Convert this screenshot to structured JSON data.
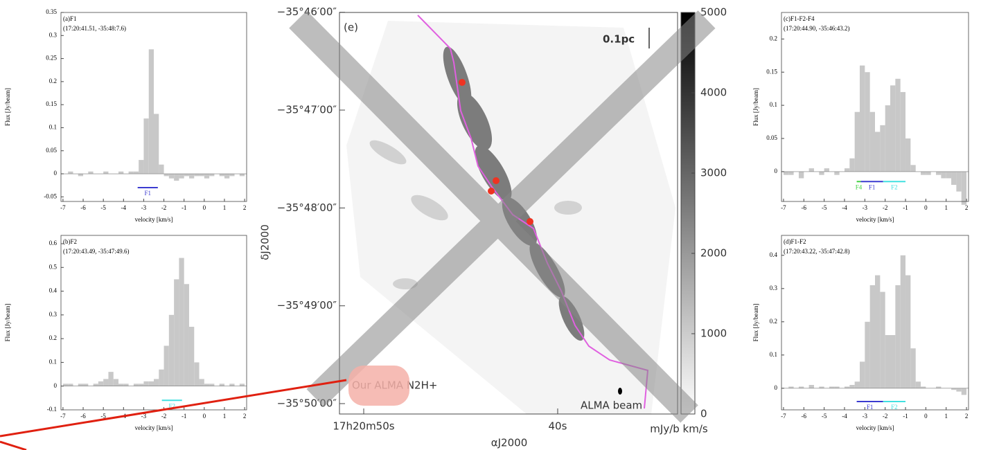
{
  "chart_data": [
    {
      "type": "histogram",
      "title": "(a)F1",
      "subtitle": "(17:20:41.51, -35:48:7.6)",
      "xlabel": "velocity [km/s]",
      "ylabel": "Flux [Jy/beam]",
      "color": "#c8c8c8",
      "bins": [
        -7,
        -6.75,
        -6.5,
        -6.25,
        -6,
        -5.75,
        -5.5,
        -5.25,
        -5,
        -4.75,
        -4.5,
        -4.25,
        -4,
        -3.75,
        -3.5,
        -3.25,
        -3,
        -2.75,
        -2.5,
        -2.25,
        -2,
        -1.75,
        -1.5,
        -1.25,
        -1,
        -0.75,
        -0.5,
        -0.25,
        0,
        0.25,
        0.5,
        0.75,
        1,
        1.25,
        1.5,
        1.75,
        2
      ],
      "values": [
        0,
        0.005,
        0,
        -0.005,
        0,
        0.005,
        0,
        0,
        0.005,
        0,
        0,
        0.005,
        0,
        0.005,
        0.005,
        0.03,
        0.12,
        0.27,
        0.13,
        0.02,
        -0.005,
        -0.01,
        -0.015,
        -0.01,
        -0.005,
        -0.01,
        -0.005,
        -0.005,
        -0.01,
        -0.005,
        0,
        -0.005,
        -0.01,
        -0.005,
        0,
        -0.005
      ],
      "xlim": [
        -7.1,
        2.1
      ],
      "xticks": [
        -7,
        -6,
        -5,
        -4,
        -3,
        -2,
        -1,
        0,
        1,
        2
      ],
      "ylim": [
        -0.06,
        0.35
      ],
      "yticks": [
        -0.05,
        0,
        0.05,
        0.1,
        0.15,
        0.2,
        0.25,
        0.3,
        0.35
      ],
      "markers": [
        {
          "label": "F1",
          "from": -3.3,
          "to": -2.3,
          "y": -0.03,
          "color": "#3a3ad0"
        }
      ]
    },
    {
      "type": "histogram",
      "title": "(b)F2",
      "subtitle": "(17:20:43.49, -35:47:49.6)",
      "xlabel": "velocity [km/s]",
      "ylabel": "Flux [Jy/beam]",
      "color": "#c8c8c8",
      "bins": [
        -7,
        -6.75,
        -6.5,
        -6.25,
        -6,
        -5.75,
        -5.5,
        -5.25,
        -5,
        -4.75,
        -4.5,
        -4.25,
        -4,
        -3.75,
        -3.5,
        -3.25,
        -3,
        -2.75,
        -2.5,
        -2.25,
        -2,
        -1.75,
        -1.5,
        -1.25,
        -1,
        -0.75,
        -0.5,
        -0.25,
        0,
        0.25,
        0.5,
        0.75,
        1,
        1.25,
        1.5,
        1.75,
        2
      ],
      "values": [
        0.01,
        0.01,
        0,
        0.01,
        0.01,
        0,
        0.01,
        0.02,
        0.03,
        0.06,
        0.03,
        0.01,
        0.01,
        0,
        0.01,
        0.01,
        0.02,
        0.02,
        0.03,
        0.07,
        0.17,
        0.3,
        0.45,
        0.54,
        0.43,
        0.25,
        0.1,
        0.03,
        0.01,
        0.01,
        0,
        0.01,
        0,
        0.01,
        0,
        0.01
      ],
      "xlim": [
        -7.1,
        2.1
      ],
      "xticks": [
        -7,
        -6,
        -5,
        -4,
        -3,
        -2,
        -1,
        0,
        1,
        2
      ],
      "ylim": [
        -0.1,
        0.635
      ],
      "yticks": [
        -0.1,
        0,
        0.1,
        0.2,
        0.3,
        0.4,
        0.5,
        0.6
      ],
      "markers": [
        {
          "label": "F2",
          "from": -2.1,
          "to": -1.1,
          "y": -0.06,
          "color": "#40e0e0"
        }
      ]
    },
    {
      "type": "histogram",
      "title": "(c)F1-F2-F4",
      "subtitle": "(17:20:44.90, -35:46:43.2)",
      "xlabel": "velocity [km/s]",
      "ylabel": "Flux [Jy/beam]",
      "color": "#c8c8c8",
      "bins": [
        -7,
        -6.75,
        -6.5,
        -6.25,
        -6,
        -5.75,
        -5.5,
        -5.25,
        -5,
        -4.75,
        -4.5,
        -4.25,
        -4,
        -3.75,
        -3.5,
        -3.25,
        -3,
        -2.75,
        -2.5,
        -2.25,
        -2,
        -1.75,
        -1.5,
        -1.25,
        -1,
        -0.75,
        -0.5,
        -0.25,
        0,
        0.25,
        0.5,
        0.75,
        1,
        1.25,
        1.5,
        1.75,
        2
      ],
      "values": [
        -0.005,
        -0.005,
        0,
        -0.01,
        0,
        0.005,
        0,
        -0.005,
        0.005,
        0,
        -0.005,
        0,
        0.005,
        0.02,
        0.09,
        0.16,
        0.15,
        0.09,
        0.06,
        0.07,
        0.1,
        0.13,
        0.14,
        0.12,
        0.05,
        0.01,
        0,
        -0.005,
        -0.005,
        0,
        -0.005,
        -0.01,
        -0.01,
        -0.02,
        -0.03,
        -0.05
      ],
      "xlim": [
        -7.1,
        2.1
      ],
      "xticks": [
        -7,
        -6,
        -5,
        -4,
        -3,
        -2,
        -1,
        0,
        1,
        2
      ],
      "ylim": [
        -0.045,
        0.24
      ],
      "yticks": [
        0,
        0.05,
        0.1,
        0.15,
        0.2
      ],
      "markers": [
        {
          "label": "F4",
          "from": -3.4,
          "to": -3.2,
          "y": -0.015,
          "color": "#40d040"
        },
        {
          "label": "F1",
          "from": -3.2,
          "to": -2.1,
          "y": -0.015,
          "color": "#3a3ad0"
        },
        {
          "label": "F2",
          "from": -2.1,
          "to": -1.0,
          "y": -0.015,
          "color": "#40e0e0"
        }
      ]
    },
    {
      "type": "histogram",
      "title": "(d)F1-F2",
      "subtitle": "(17:20:43.22, -35:47:42.8)",
      "xlabel": "velocity [km/s]",
      "ylabel": "Flux [Jy/beam]",
      "color": "#c8c8c8",
      "bins": [
        -7,
        -6.75,
        -6.5,
        -6.25,
        -6,
        -5.75,
        -5.5,
        -5.25,
        -5,
        -4.75,
        -4.5,
        -4.25,
        -4,
        -3.75,
        -3.5,
        -3.25,
        -3,
        -2.75,
        -2.5,
        -2.25,
        -2,
        -1.75,
        -1.5,
        -1.25,
        -1,
        -0.75,
        -0.5,
        -0.25,
        0,
        0.25,
        0.5,
        0.75,
        1,
        1.25,
        1.5,
        1.75,
        2
      ],
      "values": [
        0,
        0.005,
        0,
        0.005,
        0,
        0.01,
        0,
        0.005,
        0,
        0.005,
        0.005,
        0,
        0.005,
        0.01,
        0.02,
        0.08,
        0.2,
        0.31,
        0.34,
        0.29,
        0.16,
        0.16,
        0.31,
        0.4,
        0.34,
        0.12,
        0.02,
        0.005,
        0,
        0,
        0.005,
        0,
        0,
        -0.005,
        -0.01,
        -0.02
      ],
      "xlim": [
        -7.1,
        2.1
      ],
      "xticks": [
        -7,
        -6,
        -5,
        -4,
        -3,
        -2,
        -1,
        0,
        1,
        2
      ],
      "ylim": [
        -0.065,
        0.46
      ],
      "yticks": [
        0,
        0.1,
        0.2,
        0.3,
        0.4
      ],
      "markers": [
        {
          "label": "F1",
          "from": -3.4,
          "to": -2.1,
          "y": -0.04,
          "color": "#3a3ad0"
        },
        {
          "label": "F2",
          "from": -2.1,
          "to": -1.0,
          "y": -0.04,
          "color": "#40e0e0"
        }
      ]
    },
    {
      "type": "image",
      "title": "(e)",
      "xlabel": "αJ2000",
      "ylabel": "δJ2000",
      "xlim": [
        51.25,
        33.82
      ],
      "xticks": [
        {
          "value": 50,
          "label": "17h20m50s"
        },
        {
          "value": 40,
          "label": "40s"
        }
      ],
      "ylim": [
        -35.8351,
        -35.7667
      ],
      "yticks": [
        {
          "value": -35.76667,
          "label": "−35°46′00″"
        },
        {
          "value": -35.78333,
          "label": "−35°47′00″"
        },
        {
          "value": -35.8,
          "label": "−35°48′00″"
        },
        {
          "value": -35.81667,
          "label": "−35°49′00″"
        },
        {
          "value": -35.83333,
          "label": "−35°50′00″"
        }
      ],
      "zlim": [
        0,
        5000
      ],
      "zticks": [
        0,
        1000,
        2000,
        3000,
        4000,
        5000
      ],
      "zlabel": "mJy/b km/s",
      "annotations": [
        "0.1pc",
        "ALMA beam",
        "Our ALMA N2H+"
      ]
    }
  ]
}
